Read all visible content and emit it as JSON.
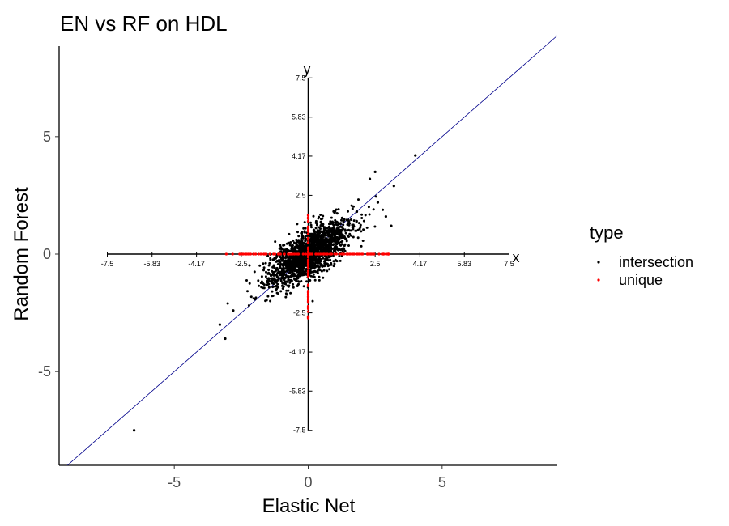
{
  "chart_data": {
    "type": "scatter",
    "title": "EN vs RF on HDL",
    "xlabel": "Elastic Net",
    "ylabel": "Random Forest",
    "xlim": [
      -9.3,
      9.3
    ],
    "ylim": [
      -9.3,
      9.3
    ],
    "x_ticks": [
      -5,
      0,
      5
    ],
    "y_ticks": [
      -5,
      0,
      5
    ],
    "x_tick_labels": [
      "-5",
      "0",
      "5"
    ],
    "y_tick_labels": [
      "-5",
      "0",
      "5"
    ],
    "grid": false,
    "reference_line": {
      "slope": 1,
      "intercept": 0,
      "color": "#00008b"
    },
    "inner_axes": {
      "x_label": "x",
      "y_label": "y",
      "range": [
        -7.5,
        7.5
      ],
      "ticks": [
        -7.5,
        -5.83,
        -4.17,
        -2.5,
        2.5,
        4.17,
        5.83,
        7.5
      ],
      "tick_labels": [
        "-7.5",
        "-5.83",
        "-4.17",
        "-2.5",
        "2.5",
        "4.17",
        "5.83",
        "7.5"
      ]
    },
    "legend": {
      "title": "type",
      "position": "right",
      "entries": [
        {
          "label": "intersection",
          "color": "#000000"
        },
        {
          "label": "unique",
          "color": "#ff0000"
        }
      ]
    },
    "series": [
      {
        "name": "intersection",
        "color": "#000000",
        "cluster": {
          "mean": [
            0,
            0
          ],
          "sd_major": 0.95,
          "sd_minor": 0.38,
          "angle_deg": 42,
          "n": 2000
        },
        "outliers": [
          {
            "x": -6.5,
            "y": -7.5
          },
          {
            "x": 4.0,
            "y": 4.2
          },
          {
            "x": 3.2,
            "y": 2.9
          },
          {
            "x": 2.5,
            "y": 3.5
          },
          {
            "x": -3.3,
            "y": -3.0
          },
          {
            "x": -3.1,
            "y": -3.6
          },
          {
            "x": 3.1,
            "y": 1.2
          },
          {
            "x": 2.6,
            "y": 2.2
          },
          {
            "x": -2.8,
            "y": -2.4
          },
          {
            "x": 2.3,
            "y": 3.2
          },
          {
            "x": 2.9,
            "y": 1.6
          }
        ]
      },
      {
        "name": "unique",
        "color": "#ff0000",
        "x_axis_points": {
          "x_range": [
            -3.1,
            3.1
          ],
          "n": 120
        },
        "y_axis_points": {
          "y_range": [
            -2.9,
            1.7
          ],
          "n": 70
        }
      }
    ]
  }
}
